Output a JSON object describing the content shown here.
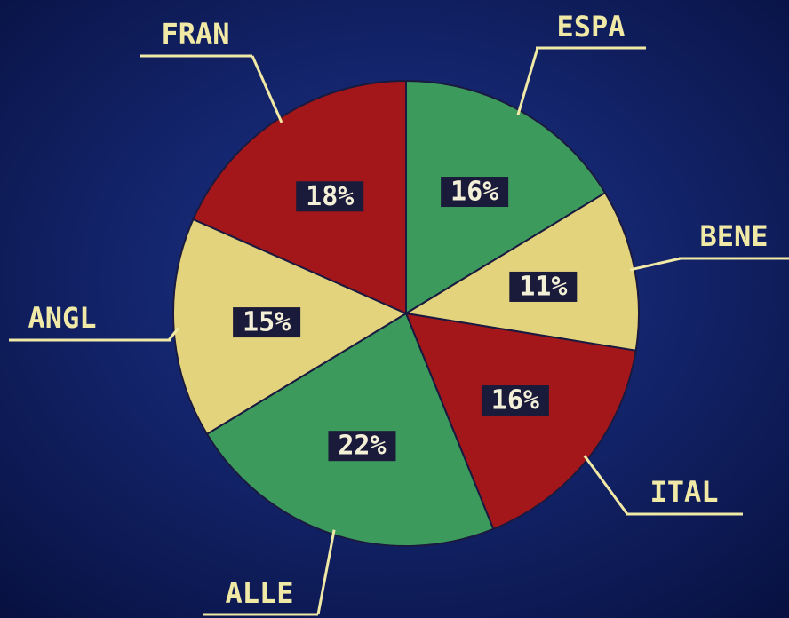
{
  "chart_data": {
    "type": "pie",
    "categories": [
      "ESPA",
      "BENE",
      "ITAL",
      "ALLE",
      "ANGL",
      "FRAN"
    ],
    "values": [
      16,
      11,
      16,
      22,
      15,
      18
    ],
    "value_labels": [
      "16%",
      "11%",
      "16%",
      "22%",
      "15%",
      "18%"
    ],
    "colors": [
      "#3c9a5c",
      "#e2d37c",
      "#a3161a",
      "#3c9a5c",
      "#e2d37c",
      "#a3161a"
    ]
  }
}
